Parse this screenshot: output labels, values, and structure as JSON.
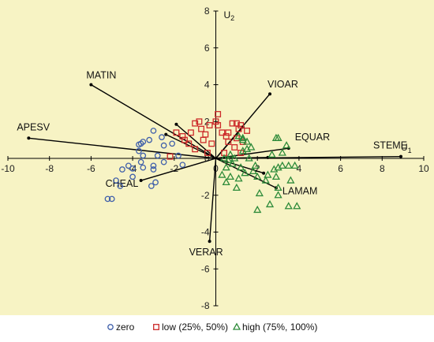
{
  "chart_data": {
    "type": "scatter",
    "subtype": "biplot",
    "xlim": [
      -10,
      10
    ],
    "ylim": [
      -8,
      8
    ],
    "x_ticks": [
      -10,
      -8,
      -6,
      -4,
      -2,
      0,
      2,
      4,
      6,
      8,
      10
    ],
    "x_tick_labels": [
      "-10",
      "-8",
      "-6",
      "-4",
      "-2",
      "0",
      "2",
      "4",
      "6",
      "8",
      "10"
    ],
    "y_ticks": [
      -8,
      -6,
      -4,
      -2,
      0,
      2,
      4,
      6,
      8
    ],
    "y_tick_labels": [
      "-8",
      "-6",
      "-4",
      "-2",
      "0",
      "2",
      "4",
      "6",
      "8"
    ],
    "xlabel": "U",
    "xlabel_sub": "1",
    "ylabel": "U",
    "ylabel_sub": "2",
    "grid": false,
    "legend_position": "bottom",
    "background": "#f7f3c4",
    "vector_color": "#000000",
    "vectors": [
      {
        "name": "STEME",
        "x": 8.9,
        "y": 0.1
      },
      {
        "name": "APESV",
        "x": -9.0,
        "y": 1.1
      },
      {
        "name": "MATIN",
        "x": -6.0,
        "y": 4.0
      },
      {
        "name": "VIOAR",
        "x": 2.6,
        "y": 3.5
      },
      {
        "name": "EQUAR",
        "x": 3.5,
        "y": 0.55
      },
      {
        "name": "LAMAM",
        "x": 2.9,
        "y": -1.6
      },
      {
        "name": "VERAR",
        "x": -0.3,
        "y": -4.5
      },
      {
        "name": "CHEAL",
        "x": -3.6,
        "y": -1.2
      },
      {
        "name": "",
        "x": -1.9,
        "y": 1.85
      },
      {
        "name": "",
        "x": -2.4,
        "y": 1.3
      },
      {
        "name": "",
        "x": 1.3,
        "y": 1.7
      },
      {
        "name": "",
        "x": 2.3,
        "y": -0.8
      },
      {
        "name": "",
        "x": 2.5,
        "y": 0.05
      }
    ],
    "series": [
      {
        "name": "zero",
        "marker": "circle",
        "color": "#3f5faa",
        "points": [
          [
            -5.0,
            -2.2
          ],
          [
            -5.2,
            -2.2
          ],
          [
            -4.8,
            -1.2
          ],
          [
            -4.6,
            -1.5
          ],
          [
            -4.0,
            -1.0
          ],
          [
            -4.0,
            -0.55
          ],
          [
            -4.2,
            -0.4
          ],
          [
            -4.5,
            -0.6
          ],
          [
            -3.5,
            -0.5
          ],
          [
            -3.6,
            -0.2
          ],
          [
            -3.5,
            0.15
          ],
          [
            -3.7,
            0.4
          ],
          [
            -3.6,
            0.8
          ],
          [
            -3.7,
            0.75
          ],
          [
            -3.5,
            0.9
          ],
          [
            -3.0,
            -0.4
          ],
          [
            -3.0,
            -0.6
          ],
          [
            -2.9,
            -1.3
          ],
          [
            -3.1,
            -1.5
          ],
          [
            -2.5,
            -0.2
          ],
          [
            -2.8,
            0.15
          ],
          [
            -2.5,
            0.7
          ],
          [
            -1.8,
            0.15
          ],
          [
            -1.6,
            -0.35
          ],
          [
            -2.1,
            0.8
          ],
          [
            -3.2,
            1.0
          ],
          [
            -3.0,
            1.5
          ],
          [
            -2.6,
            1.15
          ]
        ]
      },
      {
        "name": "low (25%, 50%)",
        "marker": "square",
        "color": "#cc2a2a",
        "points": [
          [
            -1.9,
            1.4
          ],
          [
            -1.6,
            1.2
          ],
          [
            -1.5,
            1.0
          ],
          [
            -1.3,
            0.8
          ],
          [
            -1.2,
            1.4
          ],
          [
            -1.0,
            1.9
          ],
          [
            -0.8,
            2.0
          ],
          [
            -0.7,
            1.6
          ],
          [
            -0.6,
            1.0
          ],
          [
            -0.5,
            1.3
          ],
          [
            -0.3,
            1.8
          ],
          [
            0.0,
            2.0
          ],
          [
            0.1,
            2.4
          ],
          [
            0.1,
            1.8
          ],
          [
            0.3,
            1.4
          ],
          [
            0.5,
            1.2
          ],
          [
            0.6,
            0.9
          ],
          [
            0.8,
            1.9
          ],
          [
            1.0,
            1.9
          ],
          [
            1.2,
            1.8
          ],
          [
            1.0,
            1.1
          ],
          [
            0.9,
            0.6
          ],
          [
            1.2,
            0.3
          ],
          [
            1.5,
            1.5
          ],
          [
            1.1,
            1.6
          ],
          [
            -1.0,
            0.5
          ],
          [
            -0.4,
            0.3
          ],
          [
            0.4,
            0.3
          ],
          [
            -2.2,
            0.1
          ],
          [
            -0.2,
            0.8
          ],
          [
            0.6,
            1.4
          ],
          [
            1.3,
            0.9
          ]
        ]
      },
      {
        "name": "high (75%, 100%)",
        "marker": "triangle",
        "color": "#2e8b3a",
        "points": [
          [
            0.4,
            0.0
          ],
          [
            0.5,
            -0.5
          ],
          [
            0.6,
            -0.1
          ],
          [
            0.7,
            0.2
          ],
          [
            0.8,
            -0.3
          ],
          [
            0.9,
            0.0
          ],
          [
            0.3,
            -0.9
          ],
          [
            0.5,
            -1.3
          ],
          [
            0.7,
            -1.0
          ],
          [
            1.0,
            -1.6
          ],
          [
            1.1,
            -1.1
          ],
          [
            1.2,
            -0.5
          ],
          [
            1.4,
            -0.8
          ],
          [
            1.3,
            0.4
          ],
          [
            1.5,
            0.5
          ],
          [
            1.7,
            0.6
          ],
          [
            1.8,
            -0.7
          ],
          [
            1.9,
            -0.4
          ],
          [
            2.0,
            -1.0
          ],
          [
            2.1,
            -1.9
          ],
          [
            2.4,
            -1.2
          ],
          [
            2.5,
            -0.9
          ],
          [
            2.7,
            0.2
          ],
          [
            2.8,
            -0.6
          ],
          [
            3.0,
            -0.5
          ],
          [
            3.2,
            -0.4
          ],
          [
            3.2,
            0.3
          ],
          [
            3.4,
            0.7
          ],
          [
            2.9,
            -1.0
          ],
          [
            3.5,
            -0.4
          ],
          [
            3.8,
            -0.4
          ],
          [
            3.6,
            -1.2
          ],
          [
            3.0,
            -2.0
          ],
          [
            2.6,
            -2.5
          ],
          [
            2.0,
            -2.8
          ],
          [
            3.5,
            -2.6
          ],
          [
            3.9,
            -2.6
          ],
          [
            3.0,
            1.1
          ],
          [
            2.9,
            1.1
          ],
          [
            1.5,
            0.9
          ],
          [
            1.3,
            1.1
          ],
          [
            1.1,
            1.2
          ],
          [
            1.3,
            1.0
          ],
          [
            1.6,
            0.0
          ],
          [
            3.0,
            -1.6
          ]
        ]
      }
    ]
  }
}
